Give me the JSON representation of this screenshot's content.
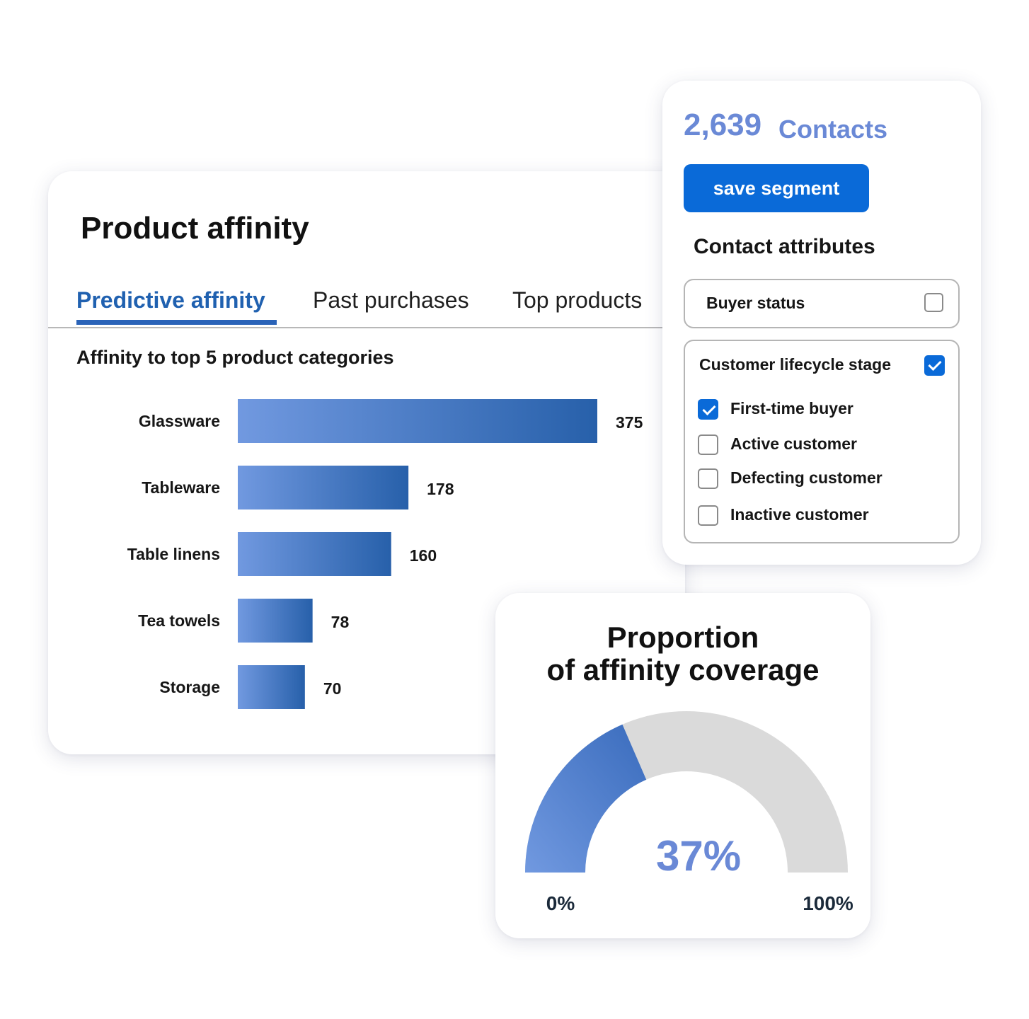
{
  "affinity_card": {
    "title": "Product affinity",
    "tabs": [
      {
        "label": "Predictive affinity",
        "active": true
      },
      {
        "label": "Past purchases",
        "active": false
      },
      {
        "label": "Top products",
        "active": false
      }
    ],
    "subtitle": "Affinity to top 5 product categories"
  },
  "chart_data": [
    {
      "type": "bar",
      "orientation": "horizontal",
      "categories": [
        "Glassware",
        "Tableware",
        "Table linens",
        "Tea towels",
        "Storage"
      ],
      "values": [
        375,
        178,
        160,
        78,
        70
      ],
      "title": "Affinity to top 5 product categories",
      "xlabel": "",
      "ylabel": "",
      "xlim": [
        0,
        375
      ],
      "grid": false,
      "colors": {
        "bar_start": "#7199e0",
        "bar_end": "#2760aa"
      }
    },
    {
      "type": "gauge",
      "title": "Proportion of affinity coverage",
      "value": 37,
      "value_label": "37%",
      "min_label": "0%",
      "max_label": "100%",
      "colors": {
        "fill_start": "#7199e0",
        "fill_end": "#3a6cbd",
        "track": "#dadada",
        "value_text": "#6a89d6"
      }
    }
  ],
  "contacts_card": {
    "count": "2,639",
    "count_label": "Contacts",
    "save_button_label": "save segment",
    "attributes_title": "Contact attributes",
    "buyer_status": {
      "label": "Buyer status",
      "checked": false
    },
    "lifecycle": {
      "label": "Customer lifecycle stage",
      "checked": true,
      "options": [
        {
          "label": "First-time buyer",
          "checked": true
        },
        {
          "label": "Active customer",
          "checked": false
        },
        {
          "label": "Defecting customer",
          "checked": false
        },
        {
          "label": "Inactive customer",
          "checked": false
        }
      ]
    }
  },
  "coverage_card": {
    "title_line1": "Proportion",
    "title_line2": "of affinity coverage"
  },
  "colors": {
    "accent": "#0a6ad8",
    "tab_active": "#2061b0",
    "contacts": "#6a89d6"
  }
}
